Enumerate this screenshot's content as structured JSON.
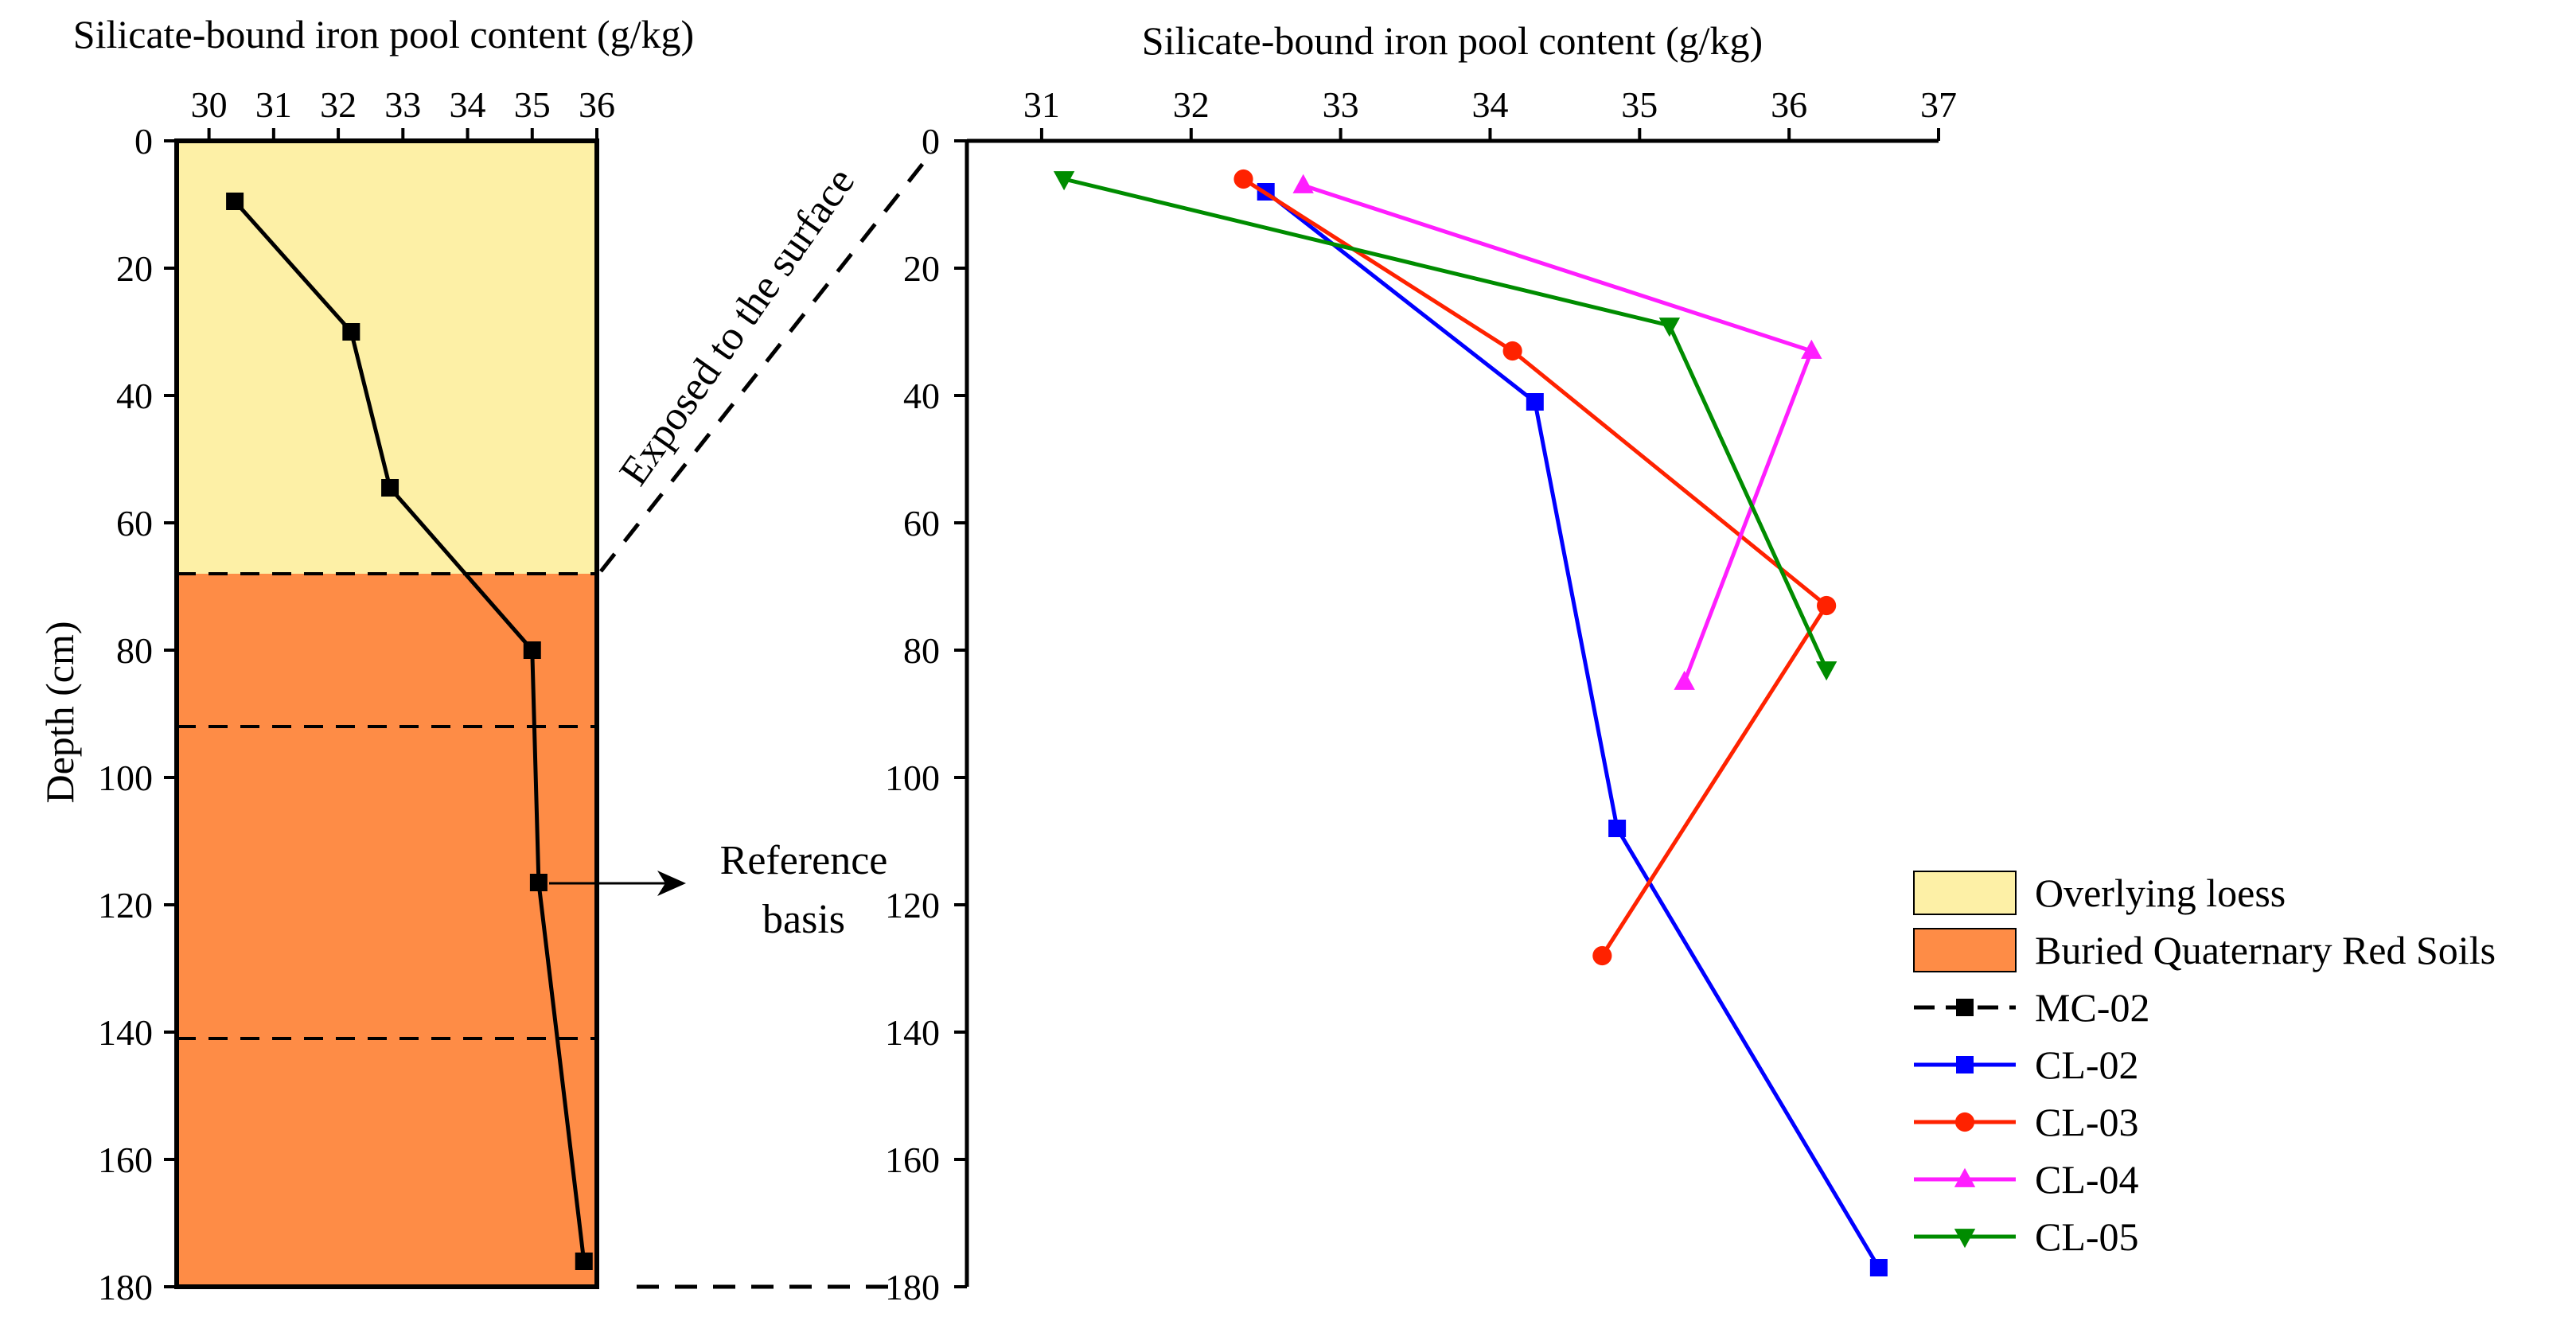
{
  "chart_data": [
    {
      "type": "line",
      "title": "",
      "xlabel": "Silicate-bound iron pool content (g/kg)",
      "ylabel": "Depth (cm)",
      "xlim": [
        29.5,
        36
      ],
      "ylim": [
        0,
        180
      ],
      "x_ticks": [
        30,
        31,
        32,
        33,
        34,
        35,
        36
      ],
      "y_ticks": [
        0,
        20,
        40,
        60,
        80,
        100,
        120,
        140,
        160,
        180
      ],
      "background_layers": [
        {
          "name": "Overlying loess",
          "depth_from": 0,
          "depth_to": 68,
          "color": "#fdf0a6"
        },
        {
          "name": "Buried Quaternary Red Soils",
          "depth_from": 68,
          "depth_to": 180,
          "color": "#fe8c46"
        }
      ],
      "dashed_depths": [
        68,
        92,
        141
      ],
      "annotations": [
        "Exposed to the surface",
        "Reference basis"
      ],
      "series": [
        {
          "name": "MC-02",
          "color": "#000000",
          "marker": "square",
          "x": [
            30.4,
            32.2,
            32.8,
            35.0,
            35.1,
            35.8
          ],
          "y": [
            9.5,
            30,
            54.5,
            80,
            116.5,
            176
          ]
        }
      ]
    },
    {
      "type": "line",
      "title": "",
      "xlabel": "Silicate-bound iron pool content (g/kg)",
      "ylabel": "",
      "xlim": [
        30.5,
        37
      ],
      "ylim": [
        0,
        180
      ],
      "x_ticks": [
        31,
        32,
        33,
        34,
        35,
        36,
        37
      ],
      "y_ticks": [
        0,
        20,
        40,
        60,
        80,
        100,
        120,
        140,
        160,
        180
      ],
      "legend_position": "bottom-right",
      "legend": [
        {
          "label": "Overlying loess",
          "kind": "box",
          "color": "#fdf0a6"
        },
        {
          "label": "Buried Quaternary Red Soils",
          "kind": "box",
          "color": "#fe8c46"
        },
        {
          "label": "MC-02",
          "kind": "dashed-line",
          "marker": "square",
          "color": "#000000"
        },
        {
          "label": "CL-02",
          "kind": "line",
          "marker": "square",
          "color": "#0000ff"
        },
        {
          "label": "CL-03",
          "kind": "line",
          "marker": "circle",
          "color": "#ff2200"
        },
        {
          "label": "CL-04",
          "kind": "line",
          "marker": "triangle-up",
          "color": "#ff1eff"
        },
        {
          "label": "CL-05",
          "kind": "line",
          "marker": "triangle-down",
          "color": "#008c00"
        }
      ],
      "series": [
        {
          "name": "CL-02",
          "color": "#0000ff",
          "marker": "square",
          "x": [
            32.5,
            34.3,
            34.85,
            36.6
          ],
          "y": [
            8,
            41,
            108,
            177
          ]
        },
        {
          "name": "CL-03",
          "color": "#ff2200",
          "marker": "circle",
          "x": [
            32.35,
            34.15,
            36.25,
            34.75
          ],
          "y": [
            6,
            33,
            73,
            128
          ]
        },
        {
          "name": "CL-04",
          "color": "#ff1eff",
          "marker": "triangle-up",
          "x": [
            32.75,
            36.15,
            35.3
          ],
          "y": [
            7,
            33,
            85
          ]
        },
        {
          "name": "CL-05",
          "color": "#008c00",
          "marker": "triangle-down",
          "x": [
            31.15,
            35.2,
            36.25
          ],
          "y": [
            6,
            29,
            83
          ]
        }
      ]
    }
  ]
}
